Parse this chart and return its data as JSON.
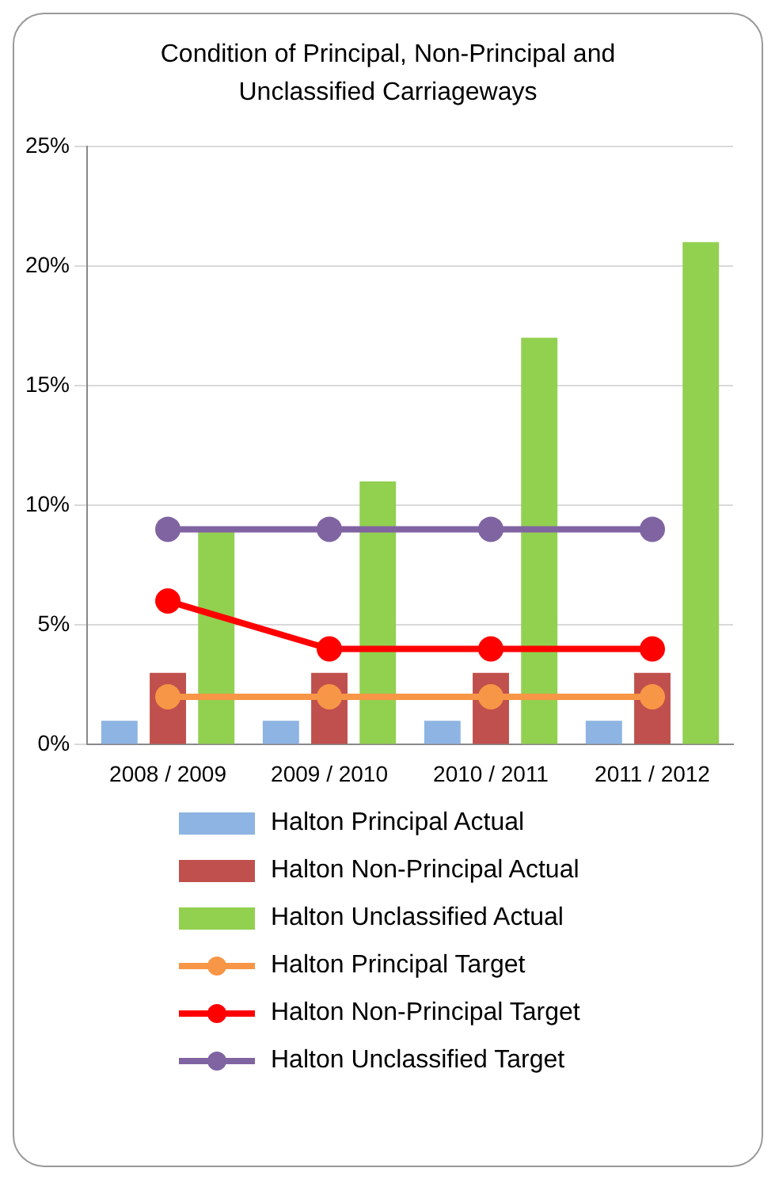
{
  "chart_data": {
    "type": "bar",
    "title": "Condition of Principal, Non-Principal and Unclassified Carriageways",
    "categories": [
      "2008 / 2009",
      "2009 / 2010",
      "2010 / 2011",
      "2011 / 2012"
    ],
    "series": [
      {
        "name": "Halton Principal Actual",
        "color": "#8db4e2",
        "values": [
          1,
          1,
          1,
          1
        ]
      },
      {
        "name": "Halton Non-Principal Actual",
        "color": "#c0504d",
        "values": [
          3,
          3,
          3,
          3
        ]
      },
      {
        "name": "Halton Unclassified Actual",
        "color": "#92d050",
        "values": [
          9,
          11,
          17,
          21
        ]
      },
      {
        "name": "Halton Principal Target",
        "type": "line",
        "color": "#f79646",
        "values": [
          2,
          2,
          2,
          2
        ]
      },
      {
        "name": "Halton Non-Principal Target",
        "type": "line",
        "color": "#ff0000",
        "values": [
          6,
          4,
          4,
          4
        ]
      },
      {
        "name": "Halton Unclassified Target",
        "type": "line",
        "color": "#8064a2",
        "values": [
          9,
          9,
          9,
          9
        ]
      }
    ],
    "ylim": [
      0,
      25
    ],
    "yticks": [
      {
        "value": 0,
        "label": "0%"
      },
      {
        "value": 5,
        "label": "5%"
      },
      {
        "value": 10,
        "label": "10%"
      },
      {
        "value": 15,
        "label": "15%"
      },
      {
        "value": 20,
        "label": "20%"
      },
      {
        "value": 25,
        "label": "25%"
      }
    ],
    "grid": "y",
    "legend": "bottom",
    "marker": "circle",
    "line_style": "solid"
  }
}
